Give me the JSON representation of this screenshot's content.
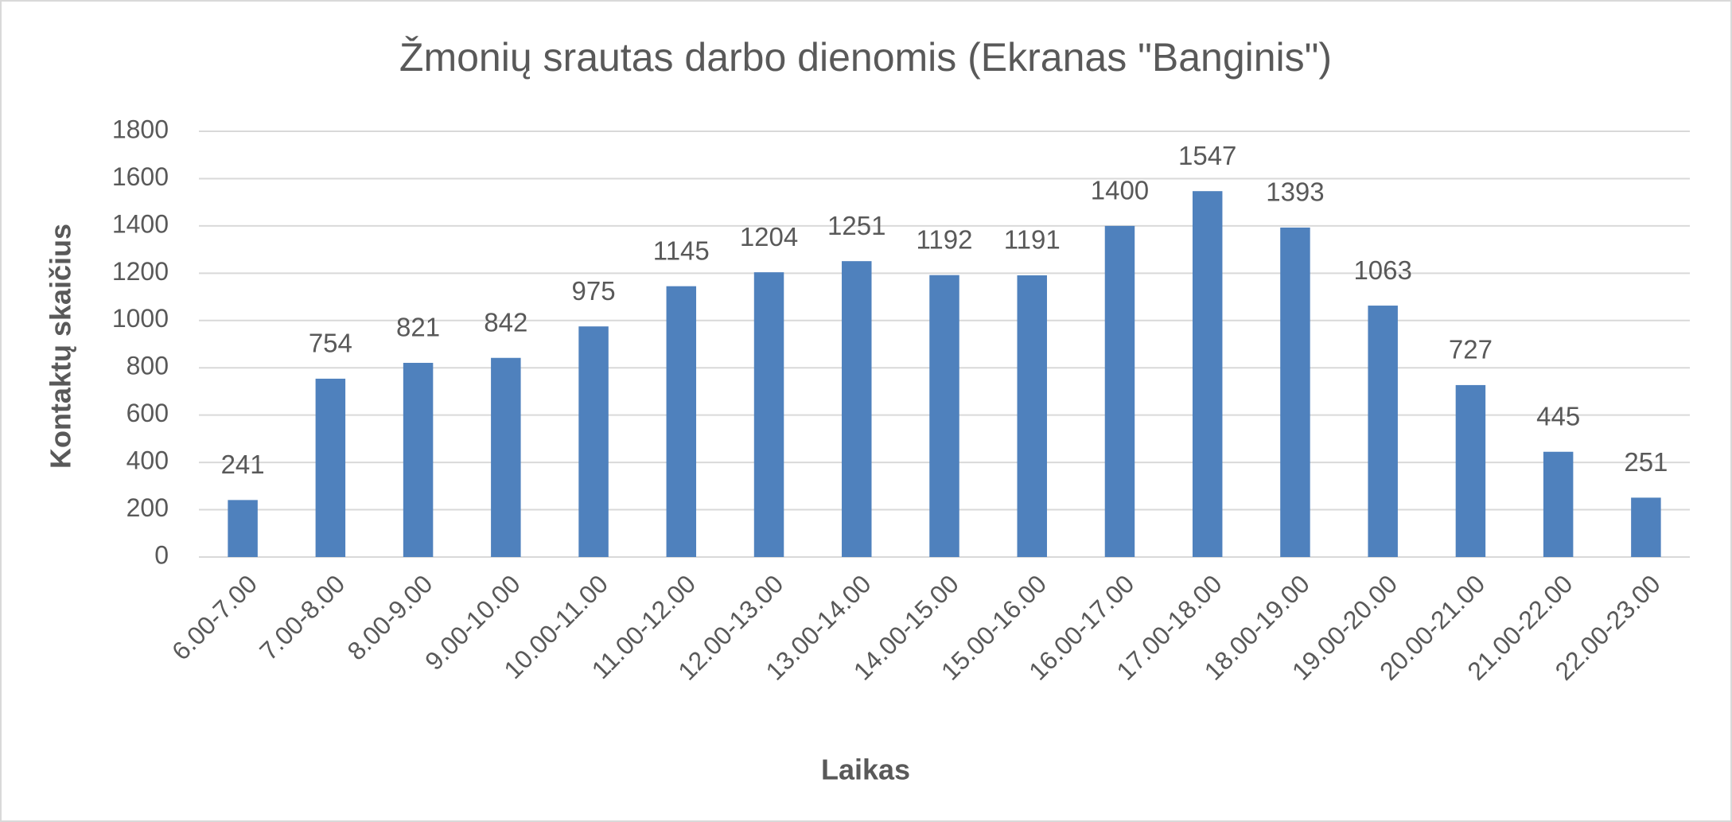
{
  "chart_data": {
    "type": "bar",
    "title": "Žmonių srautas darbo dienomis (Ekranas \"Banginis\")",
    "x_label": "Laikas",
    "y_label": "Kontaktų skaičius",
    "categories": [
      "6.00-7.00",
      "7.00-8.00",
      "8.00-9.00",
      "9.00-10.00",
      "10.00-11.00",
      "11.00-12.00",
      "12.00-13.00",
      "13.00-14.00",
      "14.00-15.00",
      "15.00-16.00",
      "16.00-17.00",
      "17.00-18.00",
      "18.00-19.00",
      "19.00-20.00",
      "20.00-21.00",
      "21.00-22.00",
      "22.00-23.00"
    ],
    "values": [
      241,
      754,
      821,
      842,
      975,
      1145,
      1204,
      1251,
      1192,
      1191,
      1400,
      1547,
      1393,
      1063,
      727,
      445,
      251
    ],
    "color": "#4f81bd",
    "ylim": [
      0,
      1800
    ],
    "yticks": [
      0,
      200,
      400,
      600,
      800,
      1000,
      1200,
      1400,
      1600,
      1800
    ],
    "grid": true
  }
}
